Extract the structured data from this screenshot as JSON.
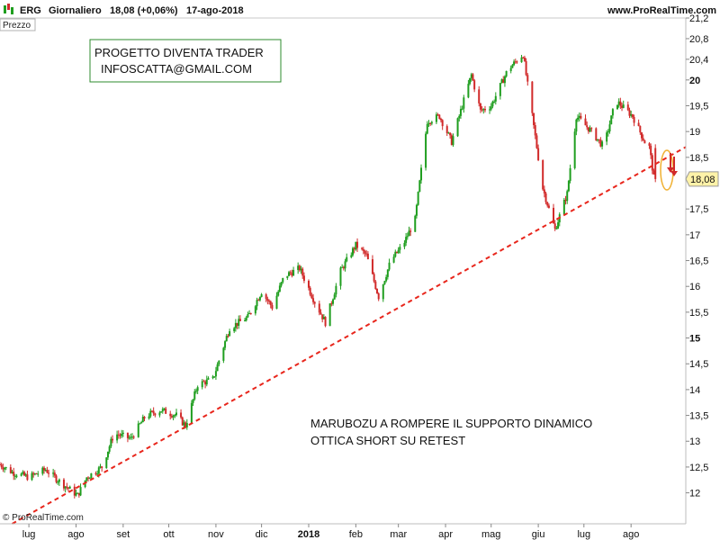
{
  "header": {
    "symbol": "ERG",
    "period": "Giornaliero",
    "quote": "18,08 (+0,06%)",
    "date": "17-ago-2018",
    "site": "www.ProRealTime.com"
  },
  "panel_label": "Prezzo",
  "copyright": "© ProRealTime.com",
  "annotations": {
    "box_line1": "PROGETTO DIVENTA TRADER",
    "box_line2": "INFOSCATTA@GMAIL.COM",
    "note_line1": "MARUBOZU A ROMPERE IL SUPPORTO DINAMICO",
    "note_line2": "OTTICA SHORT SU RETEST"
  },
  "colors": {
    "up": "#1f9e1f",
    "down": "#d12a2a",
    "trendline": "#e8261c",
    "price_tag": "#fff2a8",
    "box_border": "#2e8b2e",
    "highlight": "#f0b030"
  },
  "chart_data": {
    "type": "candlestick",
    "ylim": [
      11.4,
      21.2
    ],
    "yticks": [
      {
        "value": 12,
        "label": "12"
      },
      {
        "value": 12.5,
        "label": "12,5"
      },
      {
        "value": 13,
        "label": "13"
      },
      {
        "value": 13.5,
        "label": "13,5"
      },
      {
        "value": 14,
        "label": "14"
      },
      {
        "value": 14.5,
        "label": "14,5"
      },
      {
        "value": 15,
        "label": "15",
        "bold": true
      },
      {
        "value": 15.5,
        "label": "15,5"
      },
      {
        "value": 16,
        "label": "16"
      },
      {
        "value": 16.5,
        "label": "16,5"
      },
      {
        "value": 17,
        "label": "17"
      },
      {
        "value": 17.5,
        "label": "17,5"
      },
      {
        "value": 18.5,
        "label": "18,5"
      },
      {
        "value": 19,
        "label": "19"
      },
      {
        "value": 19.5,
        "label": "19,5"
      },
      {
        "value": 20,
        "label": "20",
        "bold": true
      },
      {
        "value": 20.4,
        "label": "20,4"
      },
      {
        "value": 20.8,
        "label": "20,8"
      },
      {
        "value": 21.2,
        "label": "21,2"
      }
    ],
    "xticks": [
      {
        "label": "lug",
        "date": "2017-07-01"
      },
      {
        "label": "ago",
        "date": "2017-08-01"
      },
      {
        "label": "set",
        "date": "2017-09-01"
      },
      {
        "label": "ott",
        "date": "2017-10-01"
      },
      {
        "label": "nov",
        "date": "2017-11-01"
      },
      {
        "label": "dic",
        "date": "2017-12-01"
      },
      {
        "label": "2018",
        "date": "2018-01-01",
        "bold": true
      },
      {
        "label": "feb",
        "date": "2018-02-01"
      },
      {
        "label": "mar",
        "date": "2018-03-01"
      },
      {
        "label": "apr",
        "date": "2018-04-01"
      },
      {
        "label": "mag",
        "date": "2018-05-01"
      },
      {
        "label": "giu",
        "date": "2018-06-01"
      },
      {
        "label": "lug",
        "date": "2018-07-01"
      },
      {
        "label": "ago",
        "date": "2018-08-01"
      }
    ],
    "x_range": [
      "2017-06-12",
      "2018-09-06"
    ],
    "last_price": {
      "value": 18.08,
      "label": "18,08"
    },
    "trendline": {
      "start": [
        "2017-06-20",
        11.4
      ],
      "end": [
        "2018-09-06",
        18.7
      ]
    },
    "price_path": [
      [
        "2017-06-12",
        12.55
      ],
      [
        "2017-06-20",
        12.4
      ],
      [
        "2017-07-01",
        12.3
      ],
      [
        "2017-07-12",
        12.45
      ],
      [
        "2017-07-22",
        12.2
      ],
      [
        "2017-08-02",
        11.95
      ],
      [
        "2017-08-08",
        12.3
      ],
      [
        "2017-08-18",
        12.5
      ],
      [
        "2017-08-26",
        13.15
      ],
      [
        "2017-09-06",
        13.05
      ],
      [
        "2017-09-16",
        13.5
      ],
      [
        "2017-09-26",
        13.6
      ],
      [
        "2017-10-06",
        13.5
      ],
      [
        "2017-10-12",
        13.3
      ],
      [
        "2017-10-20",
        14.1
      ],
      [
        "2017-10-30",
        14.2
      ],
      [
        "2017-11-10",
        15.2
      ],
      [
        "2017-11-22",
        15.4
      ],
      [
        "2017-12-01",
        15.9
      ],
      [
        "2017-12-08",
        15.6
      ],
      [
        "2017-12-16",
        16.2
      ],
      [
        "2017-12-26",
        16.35
      ],
      [
        "2018-01-05",
        15.7
      ],
      [
        "2018-01-12",
        15.3
      ],
      [
        "2018-01-22",
        16.3
      ],
      [
        "2018-02-01",
        16.8
      ],
      [
        "2018-02-08",
        16.6
      ],
      [
        "2018-02-16",
        15.8
      ],
      [
        "2018-02-24",
        16.5
      ],
      [
        "2018-03-04",
        16.8
      ],
      [
        "2018-03-12",
        17.3
      ],
      [
        "2018-03-20",
        19.2
      ],
      [
        "2018-03-28",
        19.3
      ],
      [
        "2018-04-05",
        18.8
      ],
      [
        "2018-04-18",
        20.1
      ],
      [
        "2018-04-24",
        19.4
      ],
      [
        "2018-05-01",
        19.5
      ],
      [
        "2018-05-12",
        20.2
      ],
      [
        "2018-05-22",
        20.5
      ],
      [
        "2018-05-28",
        19.3
      ],
      [
        "2018-06-04",
        17.9
      ],
      [
        "2018-06-12",
        17.1
      ],
      [
        "2018-06-20",
        17.8
      ],
      [
        "2018-06-26",
        19.3
      ],
      [
        "2018-07-06",
        19.0
      ],
      [
        "2018-07-14",
        18.7
      ],
      [
        "2018-07-22",
        19.6
      ],
      [
        "2018-08-02",
        19.3
      ],
      [
        "2018-08-10",
        18.8
      ],
      [
        "2018-08-13",
        18.7
      ],
      [
        "2018-08-14",
        18.5
      ],
      [
        "2018-08-16",
        18.1
      ],
      [
        "2018-08-17",
        18.08
      ]
    ]
  }
}
